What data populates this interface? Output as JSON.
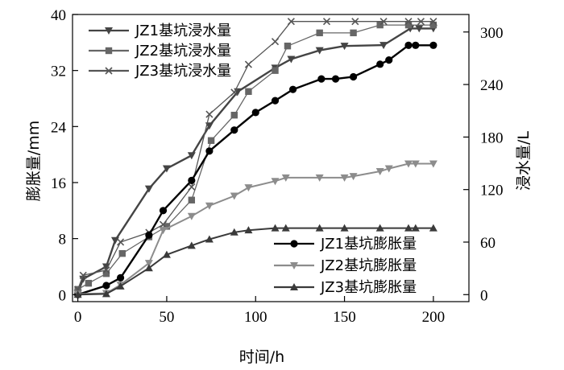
{
  "chart_data": {
    "type": "line",
    "xlabel": "时间/h",
    "ylabel": "膨胀量/mm",
    "y2label": "浸水量/L",
    "xlim": [
      -3,
      220
    ],
    "xticks": [
      0,
      50,
      100,
      150,
      200
    ],
    "ylim": [
      -1,
      40
    ],
    "yticks": [
      0,
      8,
      16,
      24,
      32,
      40
    ],
    "y2lim": [
      -8,
      320
    ],
    "y2ticks": [
      0,
      60,
      120,
      180,
      240,
      300
    ],
    "grid": false,
    "legends": [
      {
        "position": "top-left",
        "series": [
          "JZ1基坑浸水量",
          "JZ2基坑浸水量",
          "JZ3基坑浸水量"
        ]
      },
      {
        "position": "bottom-right",
        "series": [
          "JZ1基坑膨胀量",
          "JZ2基坑膨胀量",
          "JZ3基坑膨胀量"
        ]
      }
    ],
    "series": [
      {
        "name": "JZ1基坑浸水量",
        "axis": "right",
        "marker": "triangle-down",
        "color": "#444444",
        "x": [
          0,
          3,
          16,
          21,
          40,
          50,
          64,
          74,
          90,
          111,
          120,
          136,
          150,
          172,
          187,
          192,
          200
        ],
        "y": [
          2,
          18,
          32,
          62,
          121,
          144,
          159,
          193,
          232,
          259,
          269,
          279,
          284,
          285,
          304,
          304,
          304
        ]
      },
      {
        "name": "JZ2基坑浸水量",
        "axis": "right",
        "marker": "square",
        "color": "#666666",
        "x": [
          0,
          6,
          16,
          25,
          40,
          50,
          64,
          75,
          88,
          96,
          111,
          118,
          136,
          155,
          170,
          186,
          200
        ],
        "y": [
          6,
          13,
          24,
          47,
          66,
          78,
          108,
          176,
          205,
          232,
          256,
          284,
          299,
          299,
          308,
          308,
          308
        ]
      },
      {
        "name": "JZ3基坑浸水量",
        "axis": "right",
        "marker": "x",
        "color": "#555555",
        "x": [
          0,
          3,
          16,
          24,
          40,
          48,
          64,
          74,
          88,
          96,
          111,
          120,
          140,
          156,
          172,
          186,
          193,
          200
        ],
        "y": [
          6,
          22,
          28,
          60,
          71,
          80,
          123,
          206,
          231,
          263,
          289,
          312,
          312,
          312,
          312,
          312,
          312,
          312
        ]
      },
      {
        "name": "JZ1基坑膨胀量",
        "axis": "left",
        "marker": "circle",
        "color": "#000000",
        "x": [
          0,
          16,
          24,
          40,
          48,
          64,
          74,
          88,
          100,
          111,
          121,
          137,
          145,
          155,
          170,
          175,
          186,
          190,
          200
        ],
        "y": [
          0,
          1.3,
          2.4,
          8.5,
          12,
          16.3,
          20.5,
          23.5,
          26,
          27.7,
          29.3,
          30.8,
          30.8,
          31.1,
          32.9,
          33.5,
          35.6,
          35.6,
          35.6
        ]
      },
      {
        "name": "JZ2基坑膨胀量",
        "axis": "left",
        "marker": "triangle-down",
        "color": "#8c8c8c",
        "x": [
          0,
          16,
          24,
          40,
          48,
          64,
          74,
          88,
          96,
          111,
          117,
          136,
          150,
          155,
          170,
          175,
          186,
          190,
          200
        ],
        "y": [
          0.1,
          0.2,
          1.4,
          4.5,
          9.2,
          11.2,
          12.7,
          14.1,
          15.3,
          16.2,
          16.7,
          16.7,
          16.7,
          16.9,
          17.6,
          18,
          18.7,
          18.7,
          18.7
        ]
      },
      {
        "name": "JZ3基坑膨胀量",
        "axis": "left",
        "marker": "triangle-up",
        "color": "#3a3a3a",
        "x": [
          0,
          16,
          24,
          40,
          50,
          64,
          74,
          88,
          96,
          111,
          117,
          136,
          150,
          170,
          186,
          190,
          200
        ],
        "y": [
          0,
          0.1,
          1.2,
          3.8,
          5.7,
          7,
          7.9,
          8.9,
          9.2,
          9.5,
          9.5,
          9.5,
          9.5,
          9.5,
          9.5,
          9.5,
          9.5
        ]
      }
    ]
  }
}
